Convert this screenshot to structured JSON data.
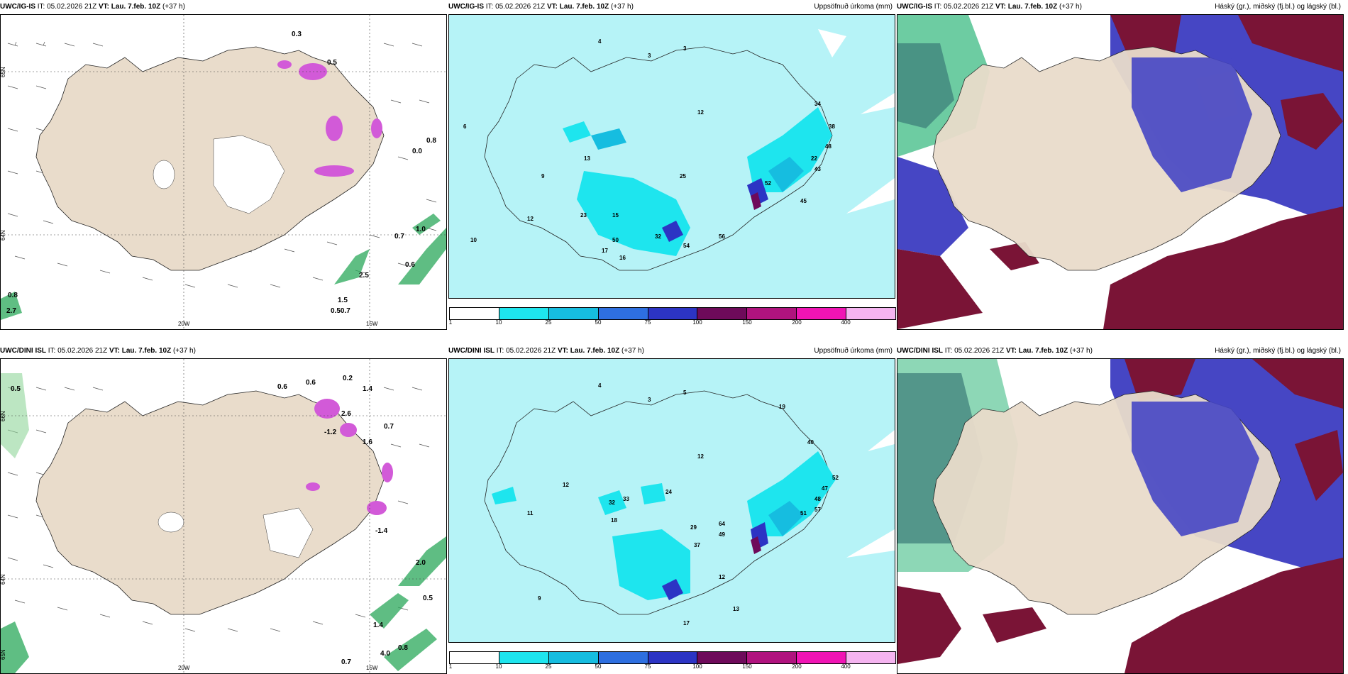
{
  "panels": [
    {
      "id": "top-left",
      "title_model": "UWC/IG-IS",
      "title_it": " IT: 05.02.2026 21Z ",
      "title_vt_label": "VT:",
      "title_vt": " Lau. 7.feb. 10Z",
      "title_lead": " (+37 h)",
      "title_right": "",
      "lon_labels": [
        "20W",
        "15W"
      ],
      "lat_labels": [
        "65N",
        "64N"
      ],
      "values": [
        "0.3",
        "0.5",
        "0.8",
        "0.0",
        "0.7",
        "1.0",
        "0.6",
        "2.5",
        "1.5",
        "0.50.7",
        "0.8",
        "2.7"
      ]
    },
    {
      "id": "top-middle",
      "title_model": "UWC/IG-IS",
      "title_it": " IT: 05.02.2026 21Z ",
      "title_vt_label": "VT:",
      "title_vt": " Lau. 7.feb. 10Z",
      "title_lead": " (+37 h)",
      "title_right": "Uppsöfnuð úrkoma (mm)",
      "values": [
        "4",
        "3",
        "3",
        "12",
        "34",
        "38",
        "48",
        "22",
        "43",
        "45",
        "52",
        "50",
        "56",
        "54",
        "32",
        "25",
        "23",
        "13",
        "12",
        "15",
        "17",
        "16",
        "6",
        "10",
        "9"
      ]
    },
    {
      "id": "top-right",
      "title_model": "UWC/IG-IS",
      "title_it": " IT: 05.02.2026 21Z ",
      "title_vt_label": "VT:",
      "title_vt": " Lau. 7.feb. 10Z",
      "title_lead": " (+37 h)",
      "title_right": "Háský (gr.), miðský (fj.bl.) og lágský (bl.)"
    },
    {
      "id": "bottom-left",
      "title_model": "UWC/DINI ISL",
      "title_it": " IT: 05.02.2026 21Z ",
      "title_vt_label": "VT:",
      "title_vt": " Lau. 7.feb. 10Z",
      "title_lead": " (+37 h)",
      "title_right": "",
      "lon_labels": [
        "20W",
        "15W"
      ],
      "lat_labels": [
        "66N",
        "64N",
        "65N"
      ],
      "values": [
        "0.5",
        "0.6",
        "0.6",
        "0.2",
        "1.4",
        "-1.2",
        "2.6",
        "1.6",
        "0.7",
        "-1.4",
        "2.0",
        "0.5",
        "1.4",
        "0.7",
        "0.8",
        "4.0"
      ]
    },
    {
      "id": "bottom-middle",
      "title_model": "UWC/DINI ISL",
      "title_it": " IT: 05.02.2026 21Z ",
      "title_vt_label": "VT:",
      "title_vt": " Lau. 7.feb. 10Z",
      "title_lead": " (+37 h)",
      "title_right": "Uppsöfnuð úrkoma (mm)",
      "values": [
        "4",
        "3",
        "5",
        "12",
        "19",
        "40",
        "52",
        "47",
        "48",
        "51",
        "57",
        "64",
        "49",
        "37",
        "29",
        "32",
        "33",
        "24",
        "18",
        "12",
        "11",
        "9",
        "12",
        "13",
        "17"
      ]
    },
    {
      "id": "bottom-right",
      "title_model": "UWC/DINI ISL",
      "title_it": " IT: 05.02.2026 21Z ",
      "title_vt_label": "VT:",
      "title_vt": " Lau. 7.feb. 10Z",
      "title_lead": " (+37 h)",
      "title_right": "Háský (gr.), miðský (fj.bl.) og lágský (bl.)"
    }
  ],
  "legend": {
    "ticks": [
      "1",
      "10",
      "25",
      "50",
      "75",
      "100",
      "150",
      "200",
      "400"
    ],
    "colors": [
      "#b4f5f8",
      "#1ee5ee",
      "#16bde0",
      "#2e6fe0",
      "#2c34c4",
      "#6e0a5a",
      "#b0137e",
      "#f014b4",
      "#f5b4f0"
    ]
  },
  "colors": {
    "land": "#e9dccb",
    "sea_precip": "#b6f3f7",
    "precip_light": "#2fd6ec",
    "cloud_high": "#2fb77a",
    "cloud_mid": "#4646c4",
    "cloud_low": "#7a1436",
    "snow_magenta": "#d25ad8"
  }
}
